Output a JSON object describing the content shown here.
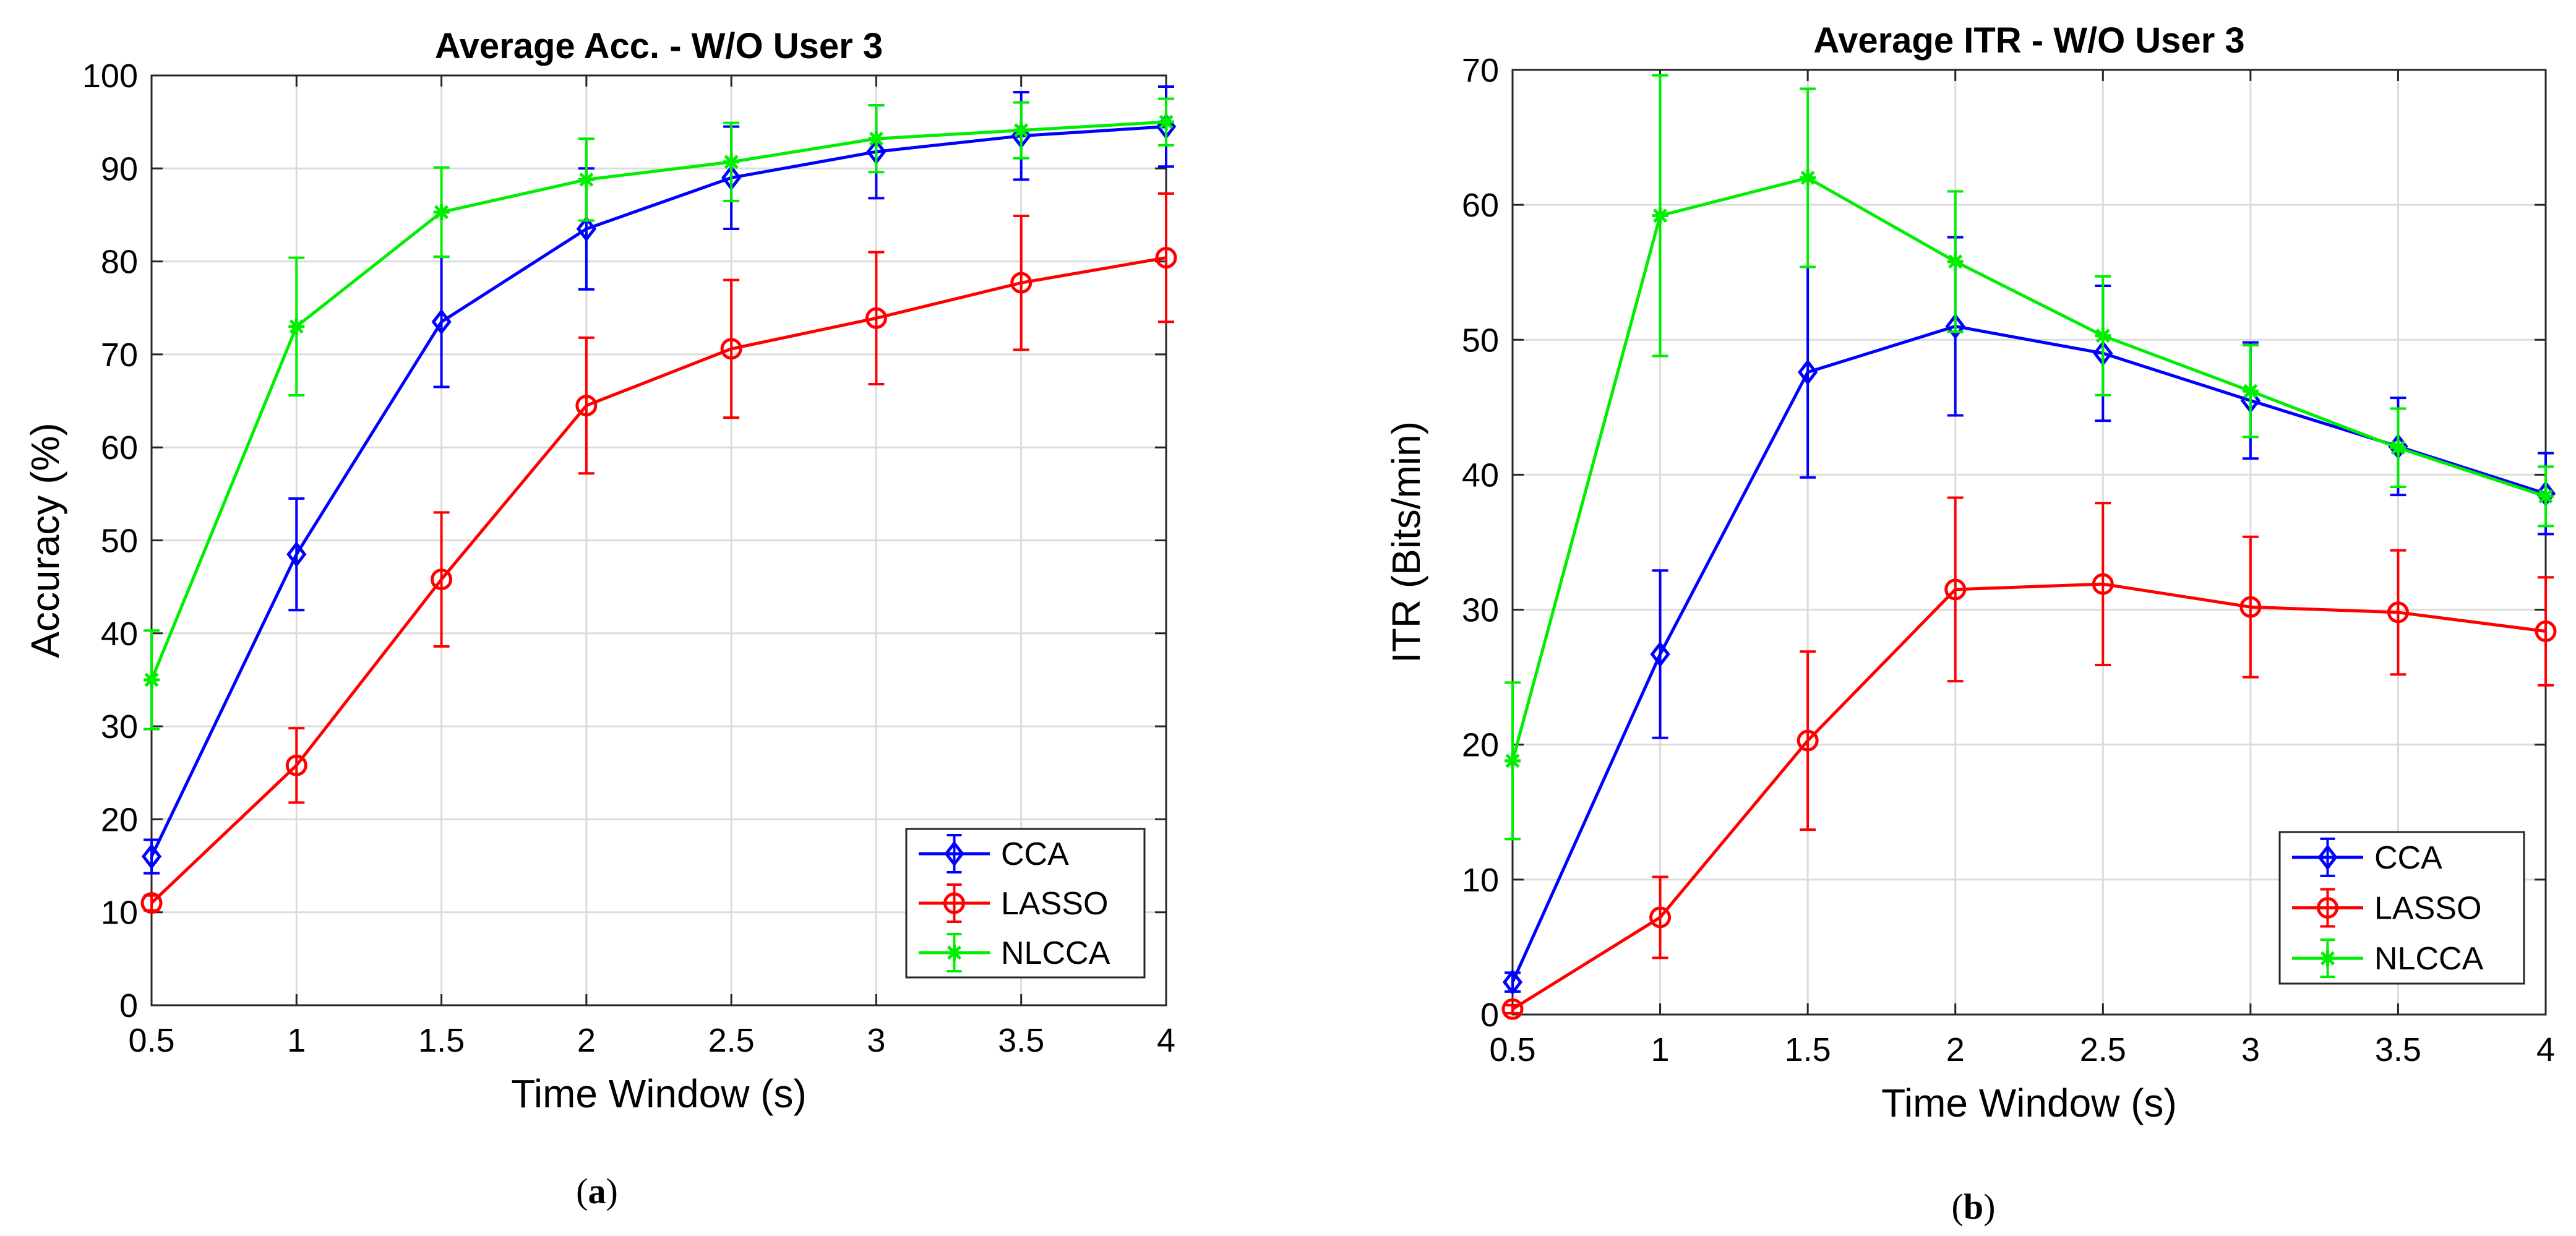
{
  "chart_data": [
    {
      "type": "line",
      "title": "Average Acc. - W/O User 3",
      "xlabel": "Time Window (s)",
      "ylabel": "Accuracy (%)",
      "caption": "(a)",
      "caption_letter": "a",
      "x": [
        0.5,
        1,
        1.5,
        2,
        2.5,
        3,
        3.5,
        4
      ],
      "x_tick_labels": [
        "0.5",
        "1",
        "1.5",
        "2",
        "2.5",
        "3",
        "3.5",
        "4"
      ],
      "xlim": [
        0.5,
        4
      ],
      "ylim": [
        0,
        100
      ],
      "y_ticks": [
        0,
        10,
        20,
        30,
        40,
        50,
        60,
        70,
        80,
        90,
        100
      ],
      "y_tick_labels": [
        "0",
        "10",
        "20",
        "30",
        "40",
        "50",
        "60",
        "70",
        "80",
        "90",
        "100"
      ],
      "grid": true,
      "legend_position": "bottom-right",
      "series": [
        {
          "name": "CCA",
          "color": "#0000ff",
          "marker": "diamond",
          "values": [
            16,
            48.5,
            73.5,
            83.5,
            89,
            91.8,
            93.5,
            94.5
          ],
          "errors": [
            1.8,
            6,
            7,
            6.5,
            5.5,
            5,
            4.7,
            4.3
          ]
        },
        {
          "name": "LASSO",
          "color": "#ff0000",
          "marker": "circle",
          "values": [
            11,
            25.8,
            45.8,
            64.5,
            70.6,
            73.9,
            77.7,
            80.4
          ],
          "errors": [
            0.8,
            4,
            7.2,
            7.3,
            7.4,
            7.1,
            7.2,
            6.9
          ]
        },
        {
          "name": "NLCCA",
          "color": "#00ee00",
          "marker": "star",
          "values": [
            35,
            73,
            85.3,
            88.8,
            90.7,
            93.2,
            94.1,
            95
          ],
          "errors": [
            5.3,
            7.4,
            4.8,
            4.4,
            4.2,
            3.6,
            3,
            2.5
          ]
        }
      ]
    },
    {
      "type": "line",
      "title": "Average ITR - W/O User 3",
      "xlabel": "Time Window (s)",
      "ylabel": "ITR (Bits/min)",
      "caption": "(b)",
      "caption_letter": "b",
      "x": [
        0.5,
        1,
        1.5,
        2,
        2.5,
        3,
        3.5,
        4
      ],
      "x_tick_labels": [
        "0.5",
        "1",
        "1.5",
        "2",
        "2.5",
        "3",
        "3.5",
        "4"
      ],
      "xlim": [
        0.5,
        4
      ],
      "ylim": [
        0,
        70
      ],
      "y_ticks": [
        0,
        10,
        20,
        30,
        40,
        50,
        60,
        70
      ],
      "y_tick_labels": [
        "0",
        "10",
        "20",
        "30",
        "40",
        "50",
        "60",
        "70"
      ],
      "grid": true,
      "legend_position": "bottom-right",
      "series": [
        {
          "name": "CCA",
          "color": "#0000ff",
          "marker": "diamond",
          "values": [
            2.4,
            26.7,
            47.6,
            51,
            49,
            45.5,
            42.1,
            38.6
          ],
          "errors": [
            0.7,
            6.2,
            7.8,
            6.6,
            5,
            4.3,
            3.6,
            3
          ]
        },
        {
          "name": "LASSO",
          "color": "#ff0000",
          "marker": "circle",
          "values": [
            0.4,
            7.2,
            20.3,
            31.5,
            31.9,
            30.2,
            29.8,
            28.4
          ],
          "errors": [
            0.3,
            3,
            6.6,
            6.8,
            6,
            5.2,
            4.6,
            4
          ]
        },
        {
          "name": "NLCCA",
          "color": "#00ee00",
          "marker": "star",
          "values": [
            18.8,
            59.2,
            62,
            55.8,
            50.3,
            46.2,
            42,
            38.4
          ],
          "errors": [
            5.8,
            10.4,
            6.6,
            5.2,
            4.4,
            3.4,
            2.9,
            2.2
          ]
        }
      ]
    }
  ]
}
